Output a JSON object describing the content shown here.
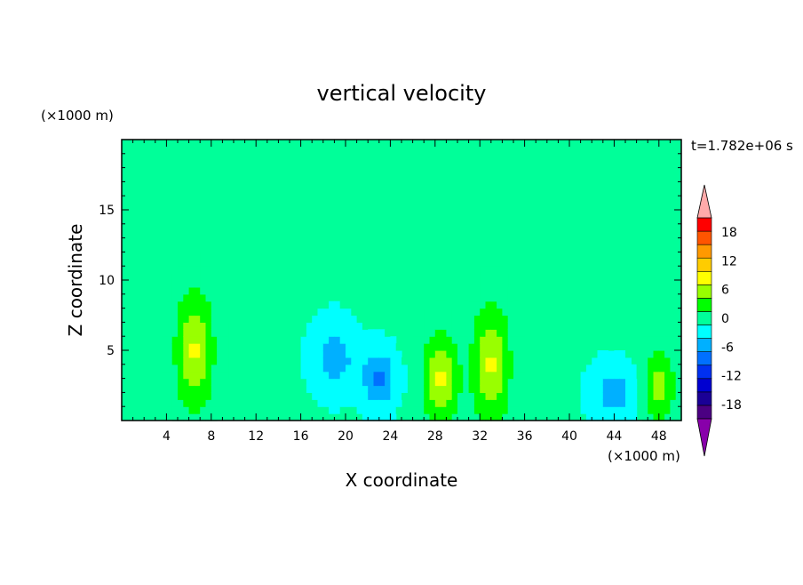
{
  "chart_data": {
    "type": "heatmap",
    "title": "vertical velocity",
    "xlabel": "X coordinate",
    "ylabel": "Z coordinate",
    "x_unit": "(×1000 m)",
    "y_unit": "(×1000 m)",
    "time_label": "t=1.782e+06 s",
    "xlim": [
      0,
      50
    ],
    "ylim": [
      0,
      20
    ],
    "x_ticks": [
      4,
      8,
      12,
      16,
      20,
      24,
      28,
      32,
      36,
      40,
      44,
      48
    ],
    "y_ticks": [
      5,
      10,
      15
    ],
    "colorbar": {
      "levels": [
        -21,
        -18,
        -15,
        -12,
        -9,
        -6,
        -3,
        0,
        3,
        6,
        9,
        12,
        15,
        18,
        21
      ],
      "tick_labels": [
        "18",
        "12",
        "6",
        "0",
        "-6",
        "-12",
        "-18"
      ],
      "tick_values": [
        18,
        12,
        6,
        0,
        -6,
        -12,
        -18
      ],
      "colors": [
        "#4b0082",
        "#1a0096",
        "#0000d0",
        "#0030f0",
        "#0070ff",
        "#00b0ff",
        "#00ffff",
        "#00ff99",
        "#00ff00",
        "#99ff00",
        "#ffff00",
        "#ffcc00",
        "#ff9900",
        "#ff5500",
        "#ff0000"
      ],
      "under_color": "#8800aa",
      "over_color": "#ffaaaa"
    },
    "features": [
      {
        "x": 6.5,
        "z": 5,
        "value": 9,
        "sx": 1.6,
        "sz": 4
      },
      {
        "x": 28.5,
        "z": 3,
        "value": 9,
        "sx": 1.5,
        "sz": 3
      },
      {
        "x": 33,
        "z": 4,
        "value": 9,
        "sx": 1.6,
        "sz": 4
      },
      {
        "x": 48,
        "z": 2.5,
        "value": 7,
        "sx": 1.4,
        "sz": 2.5
      },
      {
        "x": 23,
        "z": 3,
        "value": -7,
        "sx": 1.5,
        "sz": 2
      },
      {
        "x": 44,
        "z": 2,
        "value": -5,
        "sx": 2,
        "sz": 2
      },
      {
        "x": 19,
        "z": 4.5,
        "value": -5,
        "sx": 2,
        "sz": 2.5
      }
    ]
  }
}
